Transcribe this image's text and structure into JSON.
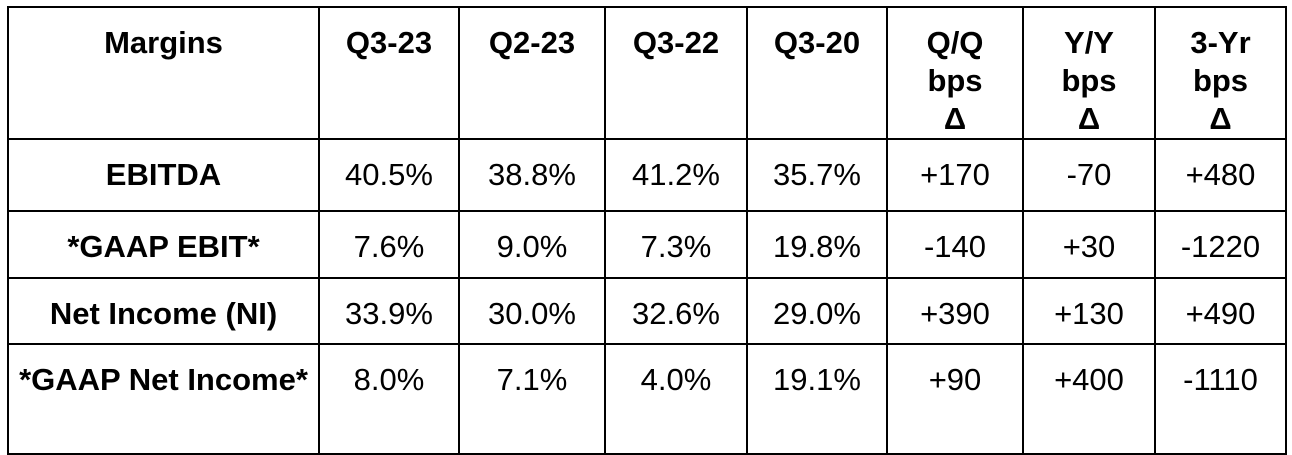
{
  "table": {
    "header": [
      "Margins",
      "Q3-23",
      "Q2-23",
      "Q3-22",
      "Q3-20",
      "Q/Q bps Δ",
      "Y/Y bps Δ",
      "3-Yr bps Δ"
    ],
    "rows": [
      [
        "EBITDA",
        "40.5%",
        "38.8%",
        "41.2%",
        "35.7%",
        "+170",
        "-70",
        "+480"
      ],
      [
        "*GAAP EBIT*",
        "7.6%",
        "9.0%",
        "7.3%",
        "19.8%",
        "-140",
        "+30",
        "-1220"
      ],
      [
        "Net Income (NI)",
        "33.9%",
        "30.0%",
        "32.6%",
        "29.0%",
        "+390",
        "+130",
        "+490"
      ],
      [
        "*GAAP Net Income*",
        "8.0%",
        "7.1%",
        "4.0%",
        "19.1%",
        "+90",
        "+400",
        "-1110"
      ]
    ]
  }
}
